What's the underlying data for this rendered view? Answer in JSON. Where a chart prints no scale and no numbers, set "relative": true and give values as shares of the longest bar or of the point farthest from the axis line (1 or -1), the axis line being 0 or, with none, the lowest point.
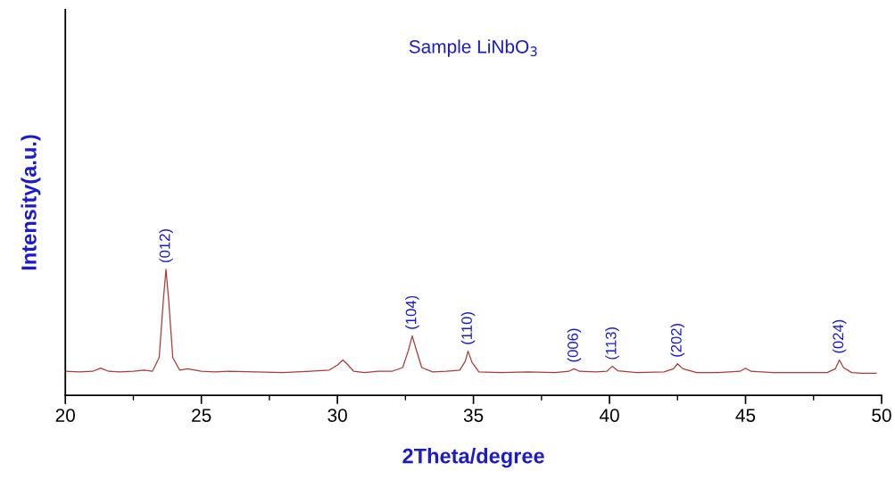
{
  "chart_data": {
    "type": "line",
    "title": "Sample LiNbO$_{3}$",
    "xlabel": "2Theta/degree",
    "ylabel": "Intensity(a.u.)",
    "relative": true,
    "xlim": [
      20,
      50
    ],
    "xticks": [
      20,
      25,
      30,
      35,
      40,
      45,
      50
    ],
    "grid": false,
    "marker": "none",
    "line_style": "solid",
    "annotations": [
      {
        "text": "(012)",
        "x": 23.7,
        "y": 1.0
      },
      {
        "text": "(104)",
        "x": 32.75,
        "y": 0.47
      },
      {
        "text": "(110)",
        "x": 34.8,
        "y": 0.35
      },
      {
        "text": "(006)",
        "x": 38.7,
        "y": 0.21
      },
      {
        "text": "(113)",
        "x": 40.1,
        "y": 0.23
      },
      {
        "text": "(202)",
        "x": 42.5,
        "y": 0.25
      },
      {
        "text": "(024)",
        "x": 48.45,
        "y": 0.28
      }
    ],
    "series": [
      {
        "color": "#b03838",
        "x": [
          20.0,
          20.5,
          21.0,
          21.3,
          21.6,
          22.0,
          22.5,
          22.9,
          23.2,
          23.45,
          23.6,
          23.7,
          23.8,
          23.95,
          24.2,
          24.5,
          25.0,
          25.5,
          26.0,
          27.0,
          28.0,
          29.0,
          29.7,
          30.0,
          30.2,
          30.35,
          30.6,
          31.0,
          31.5,
          32.0,
          32.4,
          32.6,
          32.75,
          32.9,
          33.1,
          33.5,
          34.0,
          34.5,
          34.7,
          34.8,
          34.95,
          35.2,
          36.0,
          37.0,
          38.0,
          38.5,
          38.7,
          38.9,
          39.5,
          39.9,
          40.1,
          40.3,
          41.0,
          42.0,
          42.35,
          42.5,
          42.7,
          43.2,
          44.0,
          44.8,
          45.0,
          45.2,
          46.0,
          47.0,
          48.0,
          48.3,
          48.45,
          48.6,
          48.9,
          49.3,
          49.8
        ],
        "values": [
          0.19,
          0.185,
          0.19,
          0.215,
          0.19,
          0.185,
          0.19,
          0.2,
          0.19,
          0.3,
          0.75,
          1.0,
          0.75,
          0.3,
          0.2,
          0.21,
          0.19,
          0.185,
          0.19,
          0.185,
          0.18,
          0.19,
          0.2,
          0.24,
          0.28,
          0.25,
          0.19,
          0.18,
          0.19,
          0.19,
          0.22,
          0.35,
          0.47,
          0.36,
          0.22,
          0.185,
          0.19,
          0.2,
          0.27,
          0.35,
          0.26,
          0.185,
          0.18,
          0.185,
          0.18,
          0.19,
          0.21,
          0.19,
          0.185,
          0.19,
          0.23,
          0.195,
          0.18,
          0.185,
          0.21,
          0.25,
          0.21,
          0.18,
          0.18,
          0.19,
          0.215,
          0.19,
          0.18,
          0.18,
          0.18,
          0.21,
          0.28,
          0.22,
          0.18,
          0.175,
          0.175
        ]
      }
    ]
  }
}
